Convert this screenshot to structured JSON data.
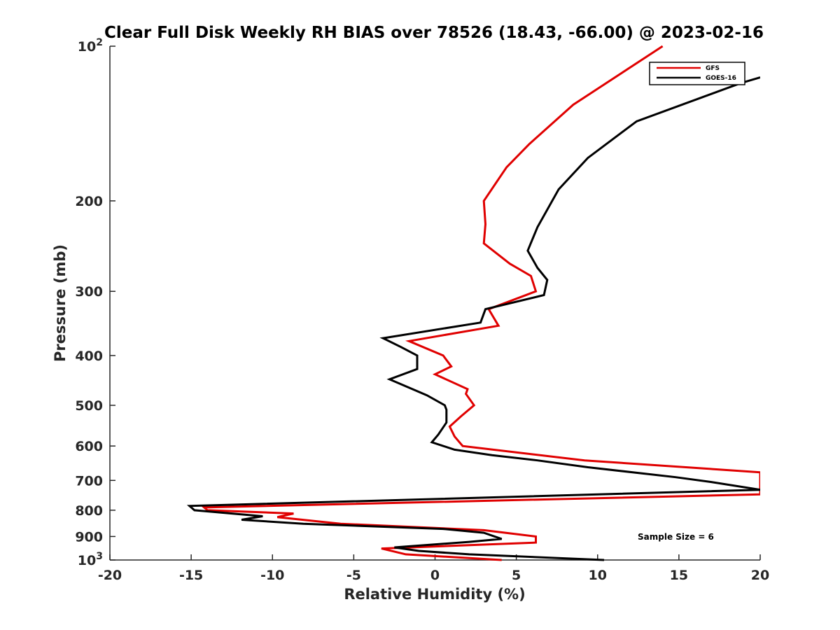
{
  "chart_data": {
    "type": "line",
    "title": "Clear Full Disk Weekly RH BIAS over 78526 (18.43, -66.00) @ 2023-02-16",
    "xlabel": "Relative Humidity (%)",
    "ylabel": "Pressure (mb)",
    "xlim": [
      -20,
      20
    ],
    "ylim": [
      1000,
      100
    ],
    "y_scale": "log",
    "y_reversed": true,
    "x_ticks": [
      -20,
      -15,
      -10,
      -5,
      0,
      5,
      10,
      15,
      20
    ],
    "x_tick_labels": [
      "-20",
      "-15",
      "-10",
      "-5",
      "0",
      "5",
      "10",
      "15",
      "20"
    ],
    "y_ticks": [
      {
        "value": 100,
        "base": "10",
        "exp": "2"
      },
      {
        "value": 200,
        "label": "200"
      },
      {
        "value": 300,
        "label": "300"
      },
      {
        "value": 400,
        "label": "400"
      },
      {
        "value": 500,
        "label": "500"
      },
      {
        "value": 600,
        "label": "600"
      },
      {
        "value": 700,
        "label": "700"
      },
      {
        "value": 800,
        "label": "800"
      },
      {
        "value": 900,
        "label": "900"
      },
      {
        "value": 1000,
        "base": "10",
        "exp": "3"
      }
    ],
    "grid": false,
    "legend_position": "top-right",
    "series": [
      {
        "name": "GFS",
        "color": "#e00000",
        "points": [
          [
            4.1,
            1000
          ],
          [
            -1.8,
            975
          ],
          [
            -3.3,
            950
          ],
          [
            6.2,
            925
          ],
          [
            6.2,
            900
          ],
          [
            3.0,
            875
          ],
          [
            -5.8,
            850
          ],
          [
            -9.7,
            825
          ],
          [
            -8.7,
            812
          ],
          [
            -14.0,
            800
          ],
          [
            -14.2,
            790
          ],
          [
            20.0,
            745
          ],
          [
            20.0,
            675
          ],
          [
            9.2,
            640
          ],
          [
            5.5,
            620
          ],
          [
            1.7,
            600
          ],
          [
            1.2,
            575
          ],
          [
            0.9,
            550
          ],
          [
            1.6,
            525
          ],
          [
            2.4,
            500
          ],
          [
            1.9,
            475
          ],
          [
            2.0,
            465
          ],
          [
            0.0,
            435
          ],
          [
            1.0,
            420
          ],
          [
            0.5,
            400
          ],
          [
            -1.6,
            375
          ],
          [
            3.9,
            350
          ],
          [
            3.3,
            325
          ],
          [
            6.2,
            300
          ],
          [
            5.9,
            280
          ],
          [
            4.6,
            265
          ],
          [
            3.0,
            242
          ],
          [
            3.1,
            222
          ],
          [
            3.0,
            200
          ],
          [
            4.4,
            172
          ],
          [
            5.8,
            155
          ],
          [
            8.5,
            130
          ],
          [
            14.0,
            100
          ]
        ]
      },
      {
        "name": "GOES-16",
        "color": "#000000",
        "points": [
          [
            10.4,
            1000
          ],
          [
            2.1,
            975
          ],
          [
            -1.0,
            960
          ],
          [
            -2.5,
            945
          ],
          [
            2.1,
            922
          ],
          [
            4.1,
            910
          ],
          [
            3.0,
            885
          ],
          [
            0.5,
            870
          ],
          [
            -8.1,
            850
          ],
          [
            -11.9,
            835
          ],
          [
            -10.6,
            822
          ],
          [
            -14.8,
            800
          ],
          [
            -15.1,
            785
          ],
          [
            20.0,
            730
          ],
          [
            17.0,
            705
          ],
          [
            14.8,
            690
          ],
          [
            9.4,
            660
          ],
          [
            6.3,
            640
          ],
          [
            3.5,
            625
          ],
          [
            1.2,
            610
          ],
          [
            -0.2,
            590
          ],
          [
            0.2,
            570
          ],
          [
            0.7,
            540
          ],
          [
            0.7,
            520
          ],
          [
            0.7,
            510
          ],
          [
            0.6,
            500
          ],
          [
            -0.5,
            478
          ],
          [
            -2.8,
            445
          ],
          [
            -1.1,
            425
          ],
          [
            -1.1,
            400
          ],
          [
            -2.1,
            385
          ],
          [
            -3.2,
            370
          ],
          [
            2.8,
            345
          ],
          [
            3.1,
            325
          ],
          [
            6.7,
            305
          ],
          [
            6.9,
            285
          ],
          [
            6.3,
            270
          ],
          [
            5.7,
            250
          ],
          [
            6.3,
            225
          ],
          [
            7.6,
            190
          ],
          [
            9.4,
            165
          ],
          [
            12.4,
            140
          ],
          [
            18.8,
            118
          ],
          [
            20.0,
            115
          ]
        ]
      }
    ],
    "annotation": "Sample Size = 6"
  }
}
